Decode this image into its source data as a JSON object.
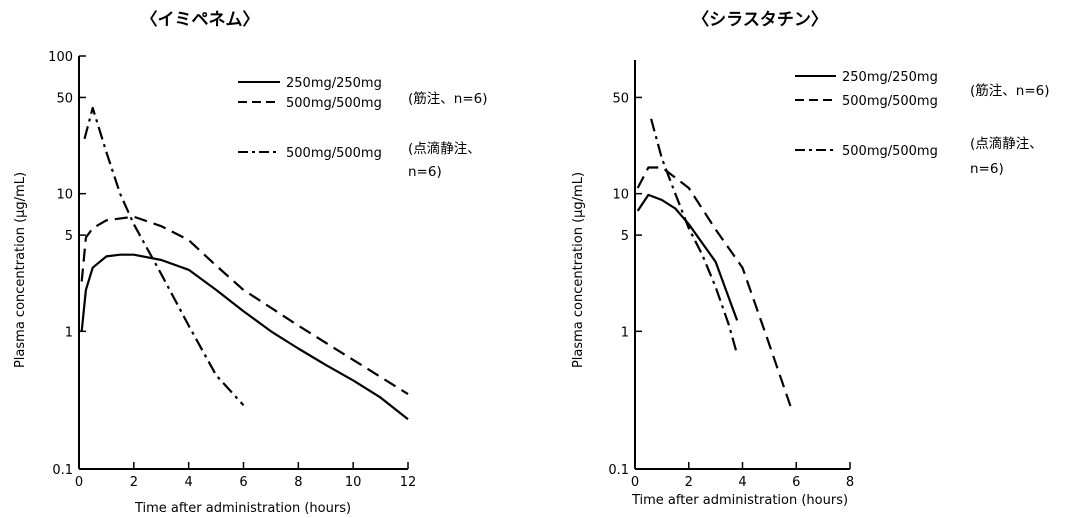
{
  "chart_data": [
    {
      "type": "line",
      "title": "〈イミペネム〉",
      "xlabel": "Time after administration (hours)",
      "ylabel": "Plasma concentration (μg/mL)",
      "xscale": "linear",
      "yscale": "log",
      "xlim": [
        0,
        12
      ],
      "ylim": [
        0.1,
        100
      ],
      "xticks": [
        0,
        2,
        4,
        6,
        8,
        10,
        12
      ],
      "yticks": [
        0.1,
        1,
        5,
        10,
        50,
        100
      ],
      "ytick_labels": [
        "0.1",
        "1",
        "5",
        "10",
        "50",
        "100"
      ],
      "grid": false,
      "legend_position": "top-right",
      "notes": [
        "(筋注、n=6)",
        "(点滴静注、",
        "n=6)"
      ],
      "series": [
        {
          "name": "250mg/250mg",
          "style": "solid",
          "x": [
            0.1,
            0.25,
            0.5,
            1,
            1.5,
            2,
            3,
            4,
            5,
            6,
            7,
            8,
            9,
            10,
            11,
            12
          ],
          "y": [
            1.0,
            2.0,
            2.9,
            3.5,
            3.6,
            3.6,
            3.3,
            2.8,
            2.0,
            1.4,
            1.0,
            0.75,
            0.57,
            0.44,
            0.33,
            0.23
          ]
        },
        {
          "name": "500mg/500mg",
          "style": "dashed",
          "x": [
            0.1,
            0.25,
            0.5,
            1,
            2,
            3,
            4,
            5,
            6,
            8,
            10,
            12
          ],
          "y": [
            2.3,
            4.8,
            5.6,
            6.4,
            6.8,
            5.8,
            4.6,
            3.0,
            2.0,
            1.1,
            0.62,
            0.35
          ]
        },
        {
          "name": "500mg/500mg",
          "style": "dashdot",
          "x": [
            0.2,
            0.5,
            1,
            1.5,
            2,
            3,
            4,
            5,
            6
          ],
          "y": [
            25,
            42,
            20,
            10,
            6.0,
            2.6,
            1.1,
            0.48,
            0.29
          ]
        }
      ]
    },
    {
      "type": "line",
      "title": "〈シラスタチン〉",
      "xlabel": "Time after administration (hours)",
      "ylabel": "Plasma concentration (μg/mL)",
      "xscale": "linear",
      "yscale": "log",
      "xlim": [
        0,
        8
      ],
      "ylim": [
        0.1,
        100
      ],
      "xticks": [
        0,
        2,
        4,
        6,
        8
      ],
      "yticks": [
        0.1,
        1,
        5,
        10,
        50
      ],
      "ytick_labels": [
        "0.1",
        "1",
        "5",
        "10",
        "50"
      ],
      "grid": false,
      "legend_position": "top-right",
      "notes": [
        "(筋注、n=6)",
        "(点滴静注、",
        "n=6)"
      ],
      "series": [
        {
          "name": "250mg/250mg",
          "style": "solid",
          "x": [
            0.1,
            0.5,
            1,
            1.5,
            2,
            3,
            3.8
          ],
          "y": [
            7.5,
            9.8,
            9.0,
            7.8,
            6.0,
            3.2,
            1.2
          ]
        },
        {
          "name": "500mg/500mg",
          "style": "dashed",
          "x": [
            0.1,
            0.5,
            1,
            2,
            3,
            4,
            5,
            5.8
          ],
          "y": [
            11,
            15.5,
            15.5,
            11,
            5.5,
            2.9,
            0.8,
            0.28
          ]
        },
        {
          "name": "500mg/500mg",
          "style": "dashdot",
          "x": [
            0.6,
            1,
            1.5,
            2,
            2.5,
            3,
            3.5,
            3.8
          ],
          "y": [
            35,
            18,
            10,
            5.6,
            3.6,
            2.1,
            1.1,
            0.68
          ]
        }
      ]
    }
  ]
}
